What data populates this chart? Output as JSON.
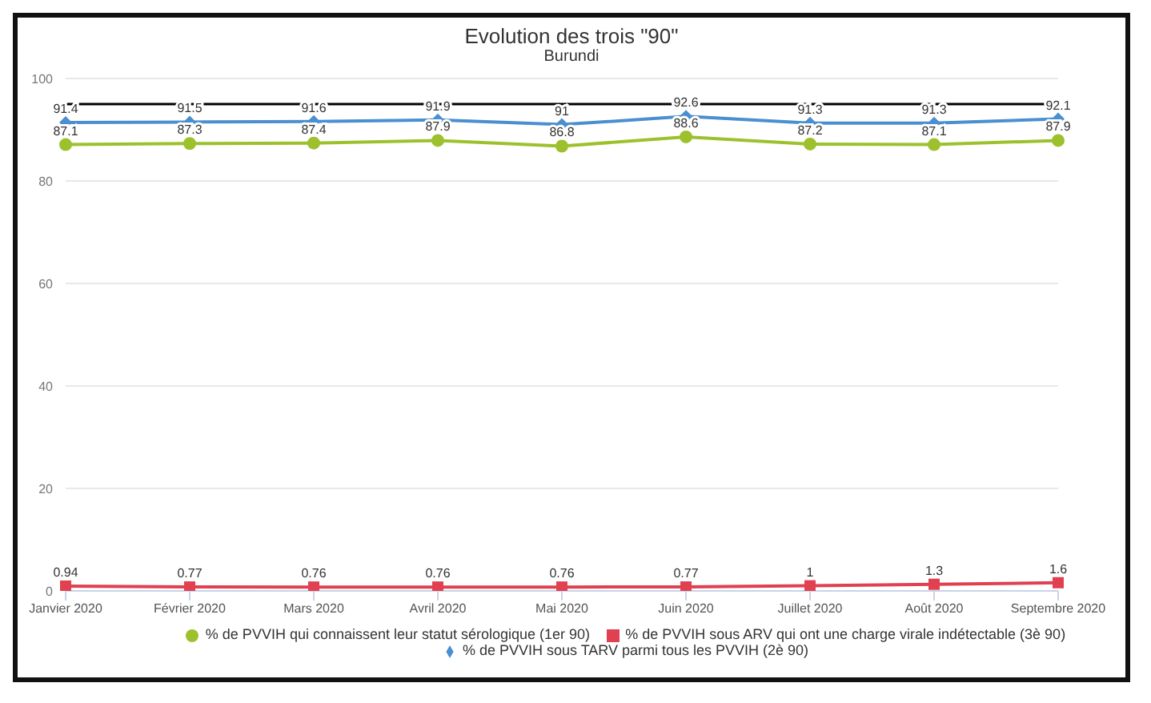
{
  "chart_data": {
    "type": "line",
    "title": "Evolution des trois \"90\"",
    "subtitle": "Burundi",
    "categories": [
      "Janvier 2020",
      "Février 2020",
      "Mars 2020",
      "Avril 2020",
      "Mai 2020",
      "Juin 2020",
      "Juillet 2020",
      "Août 2020",
      "Septembre 2020"
    ],
    "series": [
      {
        "name": "% de PVVIH qui connaissent leur statut sérologique (1er 90)",
        "color": "#9dc12d",
        "marker": "circle",
        "values": [
          87.1,
          87.3,
          87.4,
          87.9,
          86.8,
          88.6,
          87.2,
          87.1,
          87.9
        ]
      },
      {
        "name": "% de PVVIH sous TARV parmi tous les PVVIH (2è 90)",
        "color": "#4a8fd1",
        "marker": "diamond",
        "values": [
          91.4,
          91.5,
          91.6,
          91.9,
          91,
          92.6,
          91.3,
          91.3,
          92.1
        ]
      },
      {
        "name": "% de PVVIH sous ARV qui ont une charge virale indétectable (3è 90)",
        "color": "#e0404f",
        "marker": "square",
        "values": [
          0.94,
          0.77,
          0.76,
          0.76,
          0.76,
          0.77,
          1,
          1.3,
          1.6
        ]
      }
    ],
    "ylim": [
      0,
      100
    ],
    "yticks": [
      0,
      20,
      40,
      60,
      80,
      100
    ],
    "grid": "y",
    "legend": "bottom",
    "data_labels": true,
    "ref_lines": [
      {
        "axis": "y",
        "value": 95,
        "color": "#000000"
      }
    ]
  }
}
